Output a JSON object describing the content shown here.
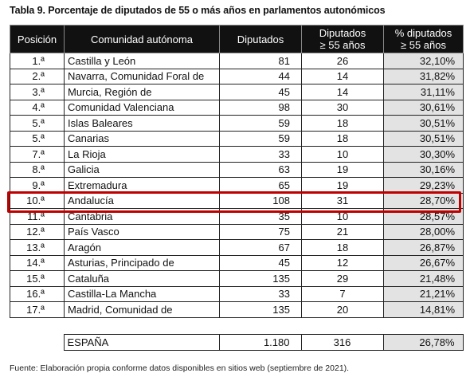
{
  "title": "Tabla 9. Porcentaje de diputados de 55 o más años en parlamentos autonómicos",
  "headers": {
    "posicion": "Posición",
    "comunidad": "Comunidad autónoma",
    "diputados": "Diputados",
    "diputados55_line1": "Diputados",
    "diputados55_line2": "≥ 55 años",
    "pct_line1": "% diputados",
    "pct_line2": "≥ 55 años"
  },
  "rows": [
    {
      "pos": "1.ª",
      "name": "Castilla y León",
      "dip": "81",
      "dip55": "26",
      "pct": "32,10%"
    },
    {
      "pos": "2.ª",
      "name": "Navarra, Comunidad Foral de",
      "dip": "44",
      "dip55": "14",
      "pct": "31,82%"
    },
    {
      "pos": "3.ª",
      "name": "Murcia, Región de",
      "dip": "45",
      "dip55": "14",
      "pct": "31,11%"
    },
    {
      "pos": "4.ª",
      "name": "Comunidad Valenciana",
      "dip": "98",
      "dip55": "30",
      "pct": "30,61%"
    },
    {
      "pos": "5.ª",
      "name": "Islas Baleares",
      "dip": "59",
      "dip55": "18",
      "pct": "30,51%"
    },
    {
      "pos": "5.ª",
      "name": "Canarias",
      "dip": "59",
      "dip55": "18",
      "pct": "30,51%"
    },
    {
      "pos": "7.ª",
      "name": "La Rioja",
      "dip": "33",
      "dip55": "10",
      "pct": "30,30%"
    },
    {
      "pos": "8.ª",
      "name": "Galicia",
      "dip": "63",
      "dip55": "19",
      "pct": "30,16%"
    },
    {
      "pos": "9.ª",
      "name": "Extremadura",
      "dip": "65",
      "dip55": "19",
      "pct": "29,23%"
    },
    {
      "pos": "10.ª",
      "name": "Andalucía",
      "dip": "108",
      "dip55": "31",
      "pct": "28,70%"
    },
    {
      "pos": "11.ª",
      "name": "Cantabria",
      "dip": "35",
      "dip55": "10",
      "pct": "28,57%"
    },
    {
      "pos": "12.ª",
      "name": "País Vasco",
      "dip": "75",
      "dip55": "21",
      "pct": "28,00%"
    },
    {
      "pos": "13.ª",
      "name": "Aragón",
      "dip": "67",
      "dip55": "18",
      "pct": "26,87%"
    },
    {
      "pos": "14.ª",
      "name": "Asturias, Principado de",
      "dip": "45",
      "dip55": "12",
      "pct": "26,67%"
    },
    {
      "pos": "15.ª",
      "name": "Cataluña",
      "dip": "135",
      "dip55": "29",
      "pct": "21,48%"
    },
    {
      "pos": "16.ª",
      "name": "Castilla-La Mancha",
      "dip": "33",
      "dip55": "7",
      "pct": "21,21%"
    },
    {
      "pos": "17.ª",
      "name": "Madrid, Comunidad de",
      "dip": "135",
      "dip55": "20",
      "pct": "14,81%"
    }
  ],
  "total": {
    "name": "ESPAÑA",
    "dip": "1.180",
    "dip55": "316",
    "pct": "26,78%"
  },
  "highlight_color": "#c00000",
  "pct_cell_bg": "#e3e3e3",
  "header_bg": "#111111",
  "footer": "Fuente: Elaboración propia conforme datos disponibles en sitios web (septiembre de 2021)."
}
